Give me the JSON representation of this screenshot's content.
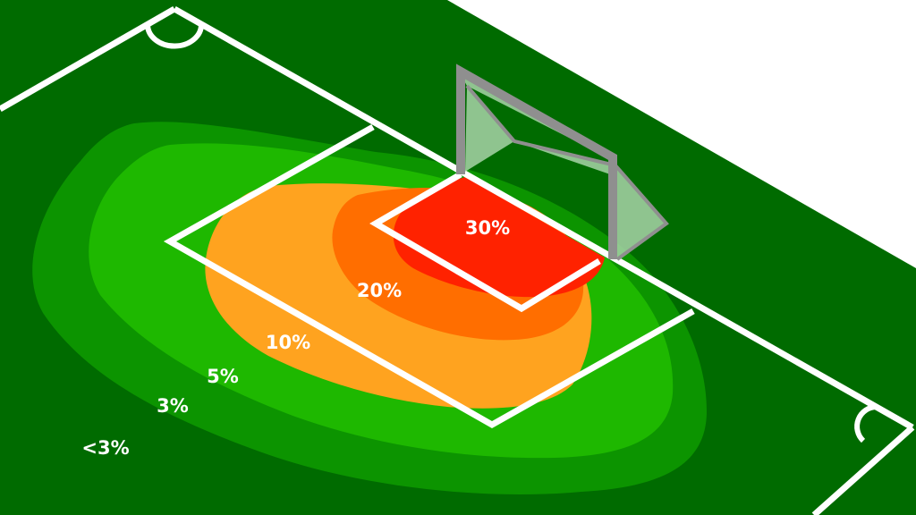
{
  "colors": {
    "pitch": "#006b00",
    "background": "#ffffff",
    "lines": "#ffffff",
    "post": "#8f8f8f",
    "net": "#a8d4a8"
  },
  "zones": [
    {
      "label": "<3%",
      "color": "#006b00"
    },
    {
      "label": "3%",
      "color": "#0c9400"
    },
    {
      "label": "5%",
      "color": "#1eb800"
    },
    {
      "label": "10%",
      "color": "#ffa31f"
    },
    {
      "label": "20%",
      "color": "#ff6e00"
    },
    {
      "label": "30%",
      "color": "#ff2200"
    }
  ]
}
